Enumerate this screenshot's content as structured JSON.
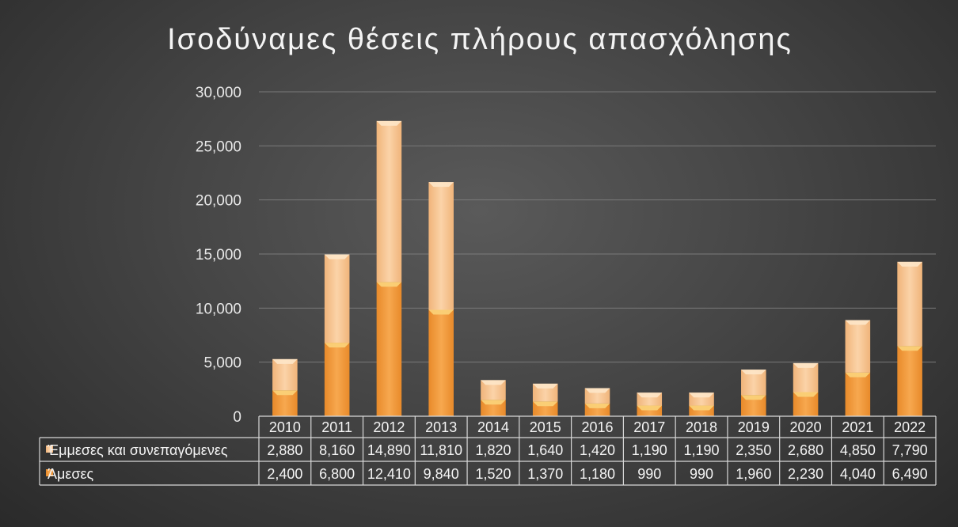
{
  "chart_data": {
    "type": "bar",
    "stacked": true,
    "title": "Ισοδύναμες θέσεις πλήρους απασχόλησης",
    "categories": [
      "2010",
      "2011",
      "2012",
      "2013",
      "2014",
      "2015",
      "2016",
      "2017",
      "2018",
      "2019",
      "2020",
      "2021",
      "2022"
    ],
    "series": [
      {
        "name": "Άμεσες",
        "color": "#f5a042",
        "values": [
          2400,
          6800,
          12410,
          9840,
          1520,
          1370,
          1180,
          990,
          990,
          1960,
          2230,
          4040,
          6490
        ],
        "labels": [
          "2,400",
          "6,800",
          "12,410",
          "9,840",
          "1,520",
          "1,370",
          "1,180",
          "990",
          "990",
          "1,960",
          "2,230",
          "4,040",
          "6,490"
        ]
      },
      {
        "name": "Έμμεσες και συνεπαγόμενες",
        "color": "#f9c99a",
        "values": [
          2880,
          8160,
          14890,
          11810,
          1820,
          1640,
          1420,
          1190,
          1190,
          2350,
          2680,
          4850,
          7790
        ],
        "labels": [
          "2,880",
          "8,160",
          "14,890",
          "11,810",
          "1,820",
          "1,640",
          "1,420",
          "1,190",
          "1,190",
          "2,350",
          "2,680",
          "4,850",
          "7,790"
        ]
      }
    ],
    "ylim": [
      0,
      30000
    ],
    "yticks": [
      {
        "value": 0,
        "label": "0"
      },
      {
        "value": 5000,
        "label": "5,000"
      },
      {
        "value": 10000,
        "label": "10,000"
      },
      {
        "value": 15000,
        "label": "15,000"
      },
      {
        "value": 20000,
        "label": "20,000"
      },
      {
        "value": 25000,
        "label": "25,000"
      },
      {
        "value": 30000,
        "label": "30,000"
      }
    ],
    "grid": true,
    "legend": "data-table"
  }
}
